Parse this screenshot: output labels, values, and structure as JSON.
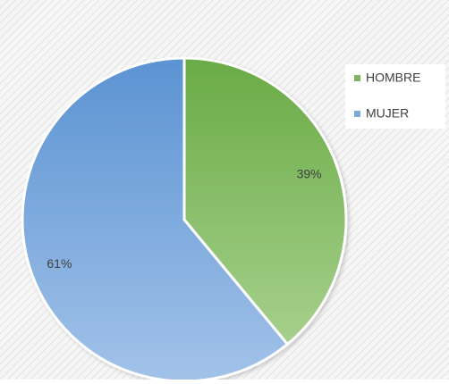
{
  "chart_data": {
    "type": "pie",
    "title": "",
    "slices": [
      {
        "label": "HOMBRE",
        "value": 39,
        "display": "39%",
        "color": "#7fb55e"
      },
      {
        "label": "MUJER",
        "value": 61,
        "display": "61%",
        "color": "#7aa9dd"
      }
    ],
    "legend_position": "top-right"
  }
}
